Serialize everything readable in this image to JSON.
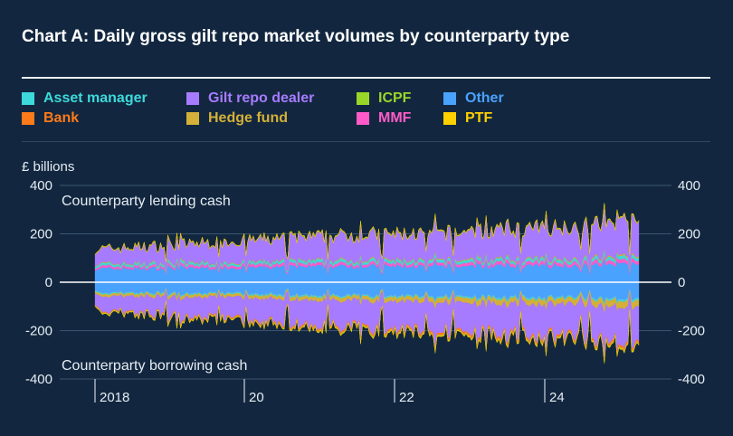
{
  "title": "Chart A: Daily gross gilt repo market volumes by counterparty type",
  "legend": [
    {
      "label": "Asset manager",
      "color": "#3dd9db"
    },
    {
      "label": "Bank",
      "color": "#ff7a1a"
    },
    {
      "label": "Gilt repo dealer",
      "color": "#a77bff"
    },
    {
      "label": "Hedge fund",
      "color": "#d4b038"
    },
    {
      "label": "ICPF",
      "color": "#9ad629"
    },
    {
      "label": "MMF",
      "color": "#ff5bc8"
    },
    {
      "label": "Other",
      "color": "#4aa2ff"
    },
    {
      "label": "PTF",
      "color": "#ffd000"
    }
  ],
  "chart_data": {
    "type": "area",
    "title": "Chart A: Daily gross gilt repo market volumes by counterparty type",
    "ylabel": "£ billions",
    "ylim": [
      -400,
      400
    ],
    "yticks": [
      "400",
      "200",
      "0",
      "-200",
      "-400"
    ],
    "right_yticks": [
      "400",
      "200",
      "0",
      "-200",
      "-400"
    ],
    "xticks": [
      "2018",
      "20",
      "22",
      "24"
    ],
    "annotations": [
      "Counterparty lending cash",
      "Counterparty borrowing cash"
    ],
    "grid": true,
    "legend_position": "top",
    "x": [
      "2017-10",
      "2018-06",
      "2019-06",
      "2020-06",
      "2021-06",
      "2022-06",
      "2023-06",
      "2024-06",
      "2025-03"
    ],
    "series": [
      {
        "name": "Other",
        "lending": [
          60,
          62,
          65,
          68,
          72,
          70,
          72,
          75,
          78
        ],
        "borrowing": [
          -45,
          -48,
          -50,
          -55,
          -60,
          -60,
          -65,
          -68,
          -70
        ]
      },
      {
        "name": "MMF",
        "lending": [
          10,
          10,
          12,
          12,
          12,
          12,
          14,
          15,
          15
        ],
        "borrowing": [
          0,
          0,
          0,
          0,
          0,
          0,
          0,
          0,
          0
        ]
      },
      {
        "name": "Asset manager",
        "lending": [
          10,
          10,
          10,
          12,
          12,
          12,
          12,
          12,
          14
        ],
        "borrowing": [
          -5,
          -5,
          -5,
          -6,
          -6,
          -6,
          -7,
          -7,
          -8
        ]
      },
      {
        "name": "Hedge fund",
        "lending": [
          3,
          3,
          3,
          3,
          4,
          4,
          4,
          5,
          5
        ],
        "borrowing": [
          -10,
          -12,
          -13,
          -15,
          -18,
          -20,
          -22,
          -25,
          -28
        ]
      },
      {
        "name": "Gilt repo dealer",
        "lending": [
          60,
          75,
          90,
          100,
          110,
          115,
          125,
          140,
          150
        ],
        "borrowing": [
          -60,
          -80,
          -95,
          -105,
          -120,
          -125,
          -130,
          -145,
          -150
        ]
      },
      {
        "name": "Bank",
        "lending": [
          1,
          1,
          1,
          1,
          1,
          1,
          1,
          1,
          1
        ],
        "borrowing": [
          -4,
          -5,
          -6,
          -7,
          -8,
          -9,
          -10,
          -10,
          -10
        ]
      },
      {
        "name": "ICPF",
        "lending": [
          2,
          2,
          2,
          3,
          3,
          3,
          3,
          3,
          3
        ],
        "borrowing": [
          -2,
          -2,
          -2,
          -2,
          -3,
          -3,
          -3,
          -3,
          -3
        ]
      },
      {
        "name": "PTF",
        "lending": [
          1,
          1,
          1,
          1,
          1,
          1,
          1,
          1,
          1
        ],
        "borrowing": [
          -2,
          -2,
          -2,
          -2,
          -3,
          -3,
          -3,
          -3,
          -3
        ]
      }
    ]
  }
}
